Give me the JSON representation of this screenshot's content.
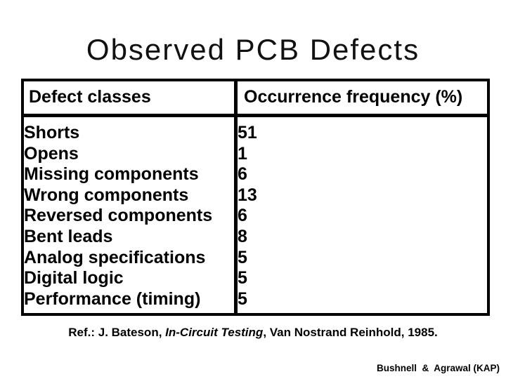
{
  "slide": {
    "title": "Observed PCB Defects",
    "table": {
      "columns": [
        "Defect classes",
        "Occurrence frequency (%)"
      ],
      "rows": [
        {
          "label": "Shorts",
          "value": "51"
        },
        {
          "label": "Opens",
          "value": "1"
        },
        {
          "label": "Missing components",
          "value": "6"
        },
        {
          "label": "Wrong components",
          "value": "13"
        },
        {
          "label": "Reversed components",
          "value": "6"
        },
        {
          "label": "Bent leads",
          "value": "8"
        },
        {
          "label": "Analog specifications",
          "value": "5"
        },
        {
          "label": "Digital logic",
          "value": "5"
        },
        {
          "label": "Performance (timing)",
          "value": "5"
        }
      ]
    },
    "reference": {
      "prefix": "Ref.: J. Bateson, ",
      "italic": "In-Circuit Testing",
      "suffix": ", Van Nostrand Reinhold, 1985."
    },
    "credit": "Bushnell  &  Agrawal (KAP)"
  },
  "chart_data": {
    "type": "table",
    "title": "Observed PCB Defects",
    "columns": [
      "Defect classes",
      "Occurrence frequency (%)"
    ],
    "categories": [
      "Shorts",
      "Opens",
      "Missing components",
      "Wrong components",
      "Reversed components",
      "Bent leads",
      "Analog specifications",
      "Digital logic",
      "Performance (timing)"
    ],
    "values": [
      51,
      1,
      6,
      13,
      6,
      8,
      5,
      5,
      5
    ]
  },
  "colors": {
    "background": "#ffffff",
    "text": "#000000",
    "border": "#000000"
  }
}
